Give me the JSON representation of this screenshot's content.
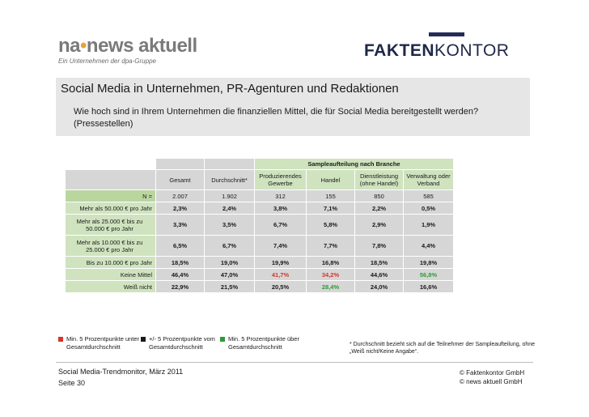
{
  "logos": {
    "left_brand_a": "na",
    "left_brand_b": "news aktuell",
    "left_tagline": "Ein Unternehmen der dpa-Gruppe",
    "right_bold": "FAKTEN",
    "right_thin": "KONTOR"
  },
  "header": {
    "title": "Social Media in Unternehmen, PR-Agenturen und Redaktionen",
    "question": "Wie hoch sind in Ihrem Unternehmen die finanziellen Mittel, die für Social Media bereitgestellt werden? (Pressestellen)"
  },
  "table": {
    "group_header": "Sampleaufteilung nach Branche",
    "columns": [
      "Gesamt",
      "Durchschnitt*",
      "Produzierendes Gewerbe",
      "Handel",
      "Dienstleistung (ohne Handel)",
      "Verwaltung oder Verband"
    ],
    "rows": [
      {
        "label": "N =",
        "values": [
          "2.007",
          "1.902",
          "312",
          "155",
          "850",
          "585"
        ]
      },
      {
        "label": "Mehr als 50.000 € pro Jahr",
        "values": [
          "2,3%",
          "2,4%",
          "3,8%",
          "7,1%",
          "2,2%",
          "0,5%"
        ]
      },
      {
        "label": "Mehr als 25.000 € bis zu 50.000 € pro Jahr",
        "values": [
          "3,3%",
          "3,5%",
          "6,7%",
          "5,8%",
          "2,9%",
          "1,9%"
        ]
      },
      {
        "label": "Mehr als 10.000 € bis zu 25.000 € pro Jahr",
        "values": [
          "6,5%",
          "6,7%",
          "7,4%",
          "7,7%",
          "7,8%",
          "4,4%"
        ]
      },
      {
        "label": "Bis zu 10.000 € pro Jahr",
        "values": [
          "18,5%",
          "19,0%",
          "19,9%",
          "16,8%",
          "18,5%",
          "19,8%"
        ]
      },
      {
        "label": "Keine Mittel",
        "values": [
          "46,4%",
          "47,0%",
          "41,7%",
          "34,2%",
          "44,6%",
          "56,8%"
        ]
      },
      {
        "label": "Weiß nicht",
        "values": [
          "22,9%",
          "21,5%",
          "20,5%",
          "28,4%",
          "24,0%",
          "16,6%"
        ]
      }
    ]
  },
  "legend": {
    "red_label": "Min. 5 Prozentpunkte unter Gesamtdurchschnitt",
    "black_label": "+/- 5 Prozentpunkte vom Gesamtdurchschnitt",
    "green_label": "Min. 5 Prozentpunkte über Gesamtdurchschnitt",
    "note": "* Durchschnitt bezieht sich auf die Teilnehmer der Sampleaufteilung, ohne „Weiß nicht/Keine Angabe“.",
    "colors": {
      "red": "#d6342a",
      "black": "#1a1a1a",
      "green": "#2e9a3a"
    }
  },
  "footer": {
    "source": "Social Media-Trendmonitor, März 2011",
    "page": "Seite 30",
    "copyright1": "© Faktenkontor GmbH",
    "copyright2": "© news aktuell GmbH"
  }
}
